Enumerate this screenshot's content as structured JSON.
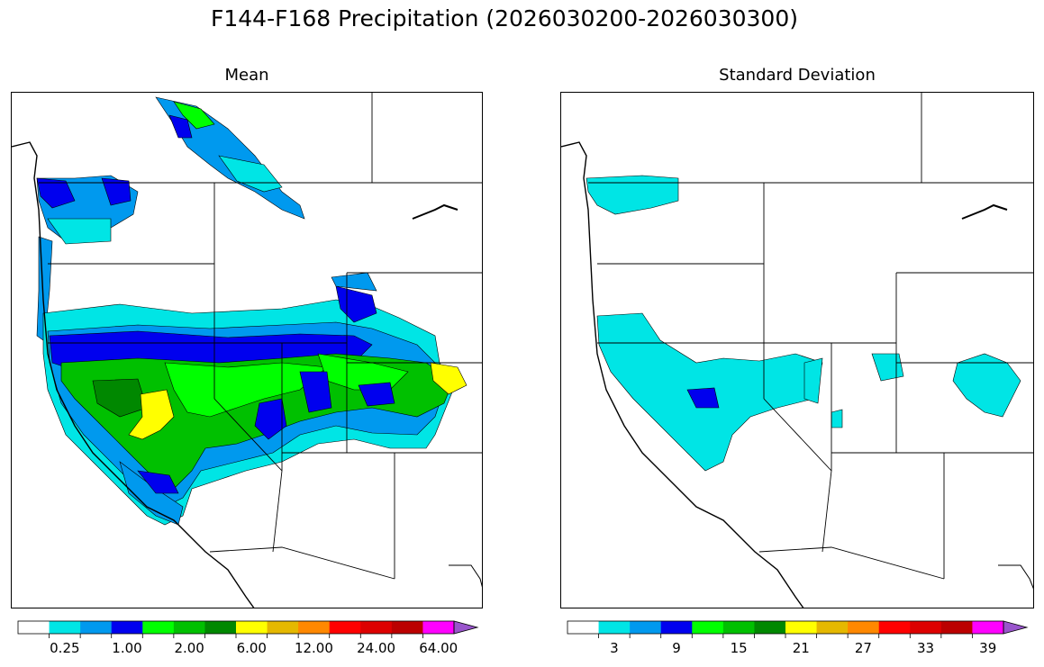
{
  "title": "F144-F168 Precipitation (2026030200-2026030300)",
  "panels": [
    {
      "title": "Mean",
      "colorbar": {
        "colors": [
          "#ffffff",
          "#00e5e5",
          "#0099ee",
          "#0000ee",
          "#00ff00",
          "#00c000",
          "#008800",
          "#ffff00",
          "#e5b800",
          "#ff8800",
          "#ff0000",
          "#dd0000",
          "#bb0000",
          "#ff00ff",
          "#9955cc"
        ],
        "tick_labels": [
          "0.25",
          "1.00",
          "2.00",
          "6.00",
          "12.00",
          "24.00",
          "64.00"
        ],
        "extend": "max"
      }
    },
    {
      "title": "Standard Deviation",
      "colorbar": {
        "colors": [
          "#ffffff",
          "#00e5e5",
          "#0099ee",
          "#0000ee",
          "#00ff00",
          "#00c000",
          "#008800",
          "#ffff00",
          "#e5b800",
          "#ff8800",
          "#ff0000",
          "#dd0000",
          "#bb0000",
          "#ff00ff",
          "#9955cc"
        ],
        "tick_labels": [
          "3",
          "9",
          "15",
          "21",
          "27",
          "33",
          "39"
        ],
        "extend": "max"
      }
    }
  ]
}
